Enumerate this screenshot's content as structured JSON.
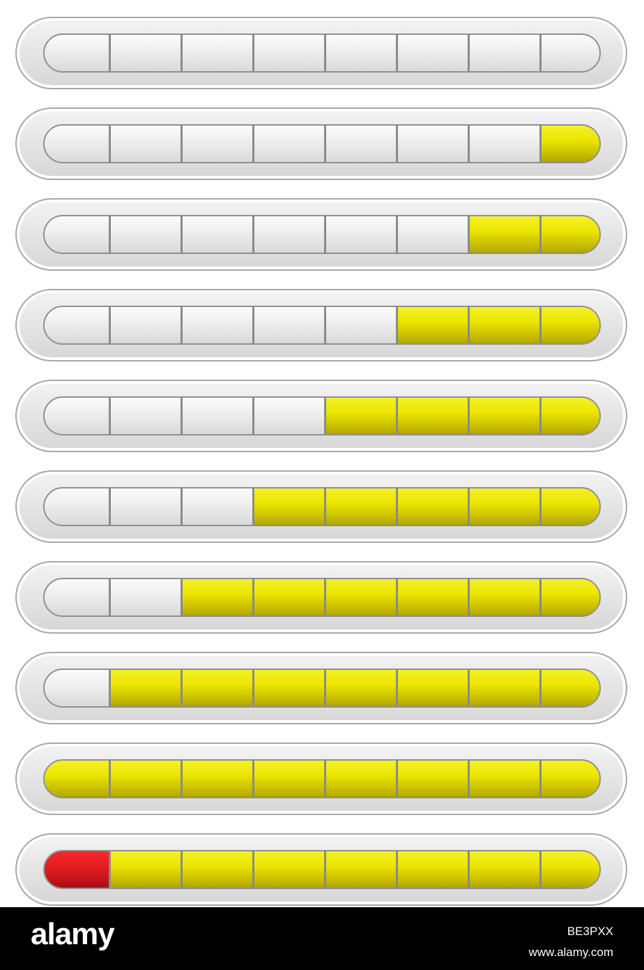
{
  "segments_per_bar": 8,
  "colors": {
    "filled": "#ece500",
    "alert": "#e51e24",
    "empty": "#eeeeee",
    "frame": "#a8a8a8",
    "divider": "#8a8a8a"
  },
  "bars": [
    {
      "filled_segments": 0,
      "alert_segments": 0
    },
    {
      "filled_segments": 1,
      "alert_segments": 0
    },
    {
      "filled_segments": 2,
      "alert_segments": 0
    },
    {
      "filled_segments": 3,
      "alert_segments": 0
    },
    {
      "filled_segments": 4,
      "alert_segments": 0
    },
    {
      "filled_segments": 5,
      "alert_segments": 0
    },
    {
      "filled_segments": 6,
      "alert_segments": 0
    },
    {
      "filled_segments": 7,
      "alert_segments": 0
    },
    {
      "filled_segments": 8,
      "alert_segments": 0
    },
    {
      "filled_segments": 7,
      "alert_segments": 1
    }
  ],
  "footer": {
    "brand": "alamy",
    "image_id": "BE3PXX",
    "site": "www.alamy.com"
  }
}
